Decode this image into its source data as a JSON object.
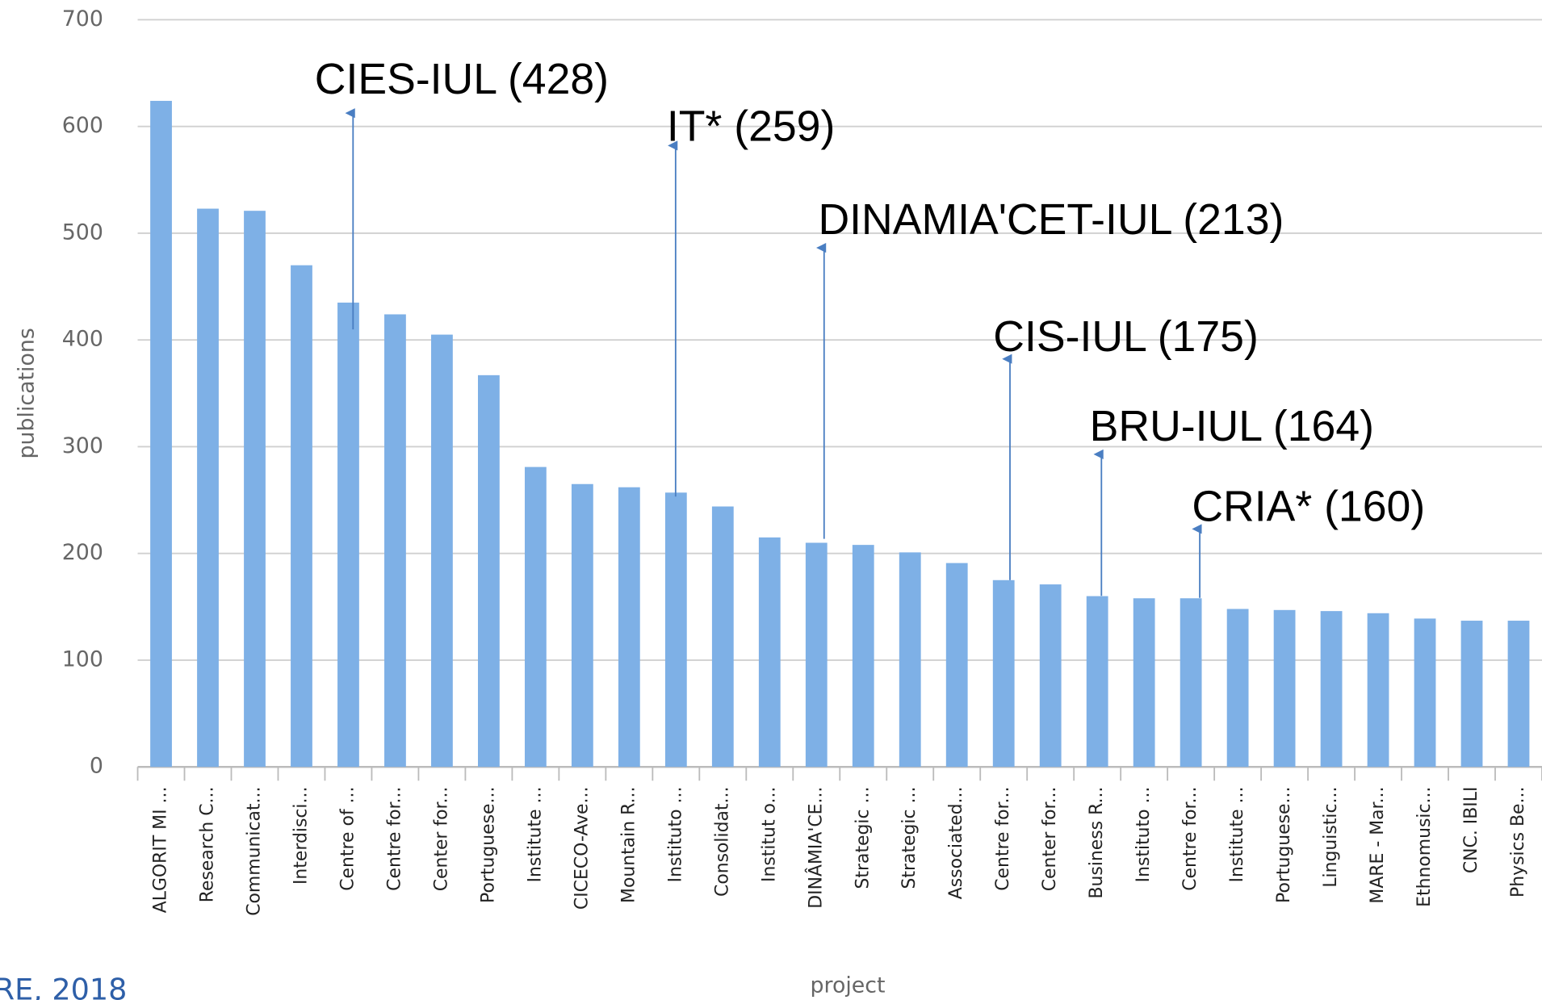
{
  "chart_data": {
    "type": "bar",
    "x_label": "project",
    "y_label": "publications",
    "categories": [
      "ALGORIT MI ...",
      "Research C...",
      "Communicat...",
      "Interdisci...",
      "Centre of ...",
      "Centre for...",
      "Center for...",
      "Portuguese...",
      "Institute ...",
      "CICECO-Ave...",
      "Mountain R...",
      "Instituto ...",
      "Consolidat...",
      "Institut o...",
      "DINÂMIA'CE...",
      "Strategic ...",
      "Strategic ...",
      "Associated...",
      "Centre for...",
      "Center for...",
      "Business R...",
      "Instituto ...",
      "Centre for...",
      "Institute ...",
      "Portuguese...",
      "Linguistic...",
      "MARE - Mar...",
      "Ethnomusic...",
      "CNC. IBILI",
      "Physics Be..."
    ],
    "values": [
      624,
      523,
      521,
      470,
      435,
      424,
      405,
      367,
      281,
      265,
      262,
      257,
      244,
      215,
      210,
      208,
      201,
      191,
      175,
      171,
      160,
      158,
      158,
      148,
      147,
      146,
      144,
      139,
      137,
      137
    ],
    "color": "#7eb0e6",
    "ylim": [
      0,
      700
    ],
    "yticks": [
      0,
      100,
      200,
      300,
      400,
      500,
      600,
      700
    ],
    "grid": true,
    "annotations": [
      "CIES-IUL (428)",
      "IT* (259)",
      "DINAMIA'CET-IUL (213)",
      "CIS-IUL (175)",
      "BRU-IUL (164)",
      "CRIA* (160)"
    ],
    "source": "RE, 2018"
  }
}
